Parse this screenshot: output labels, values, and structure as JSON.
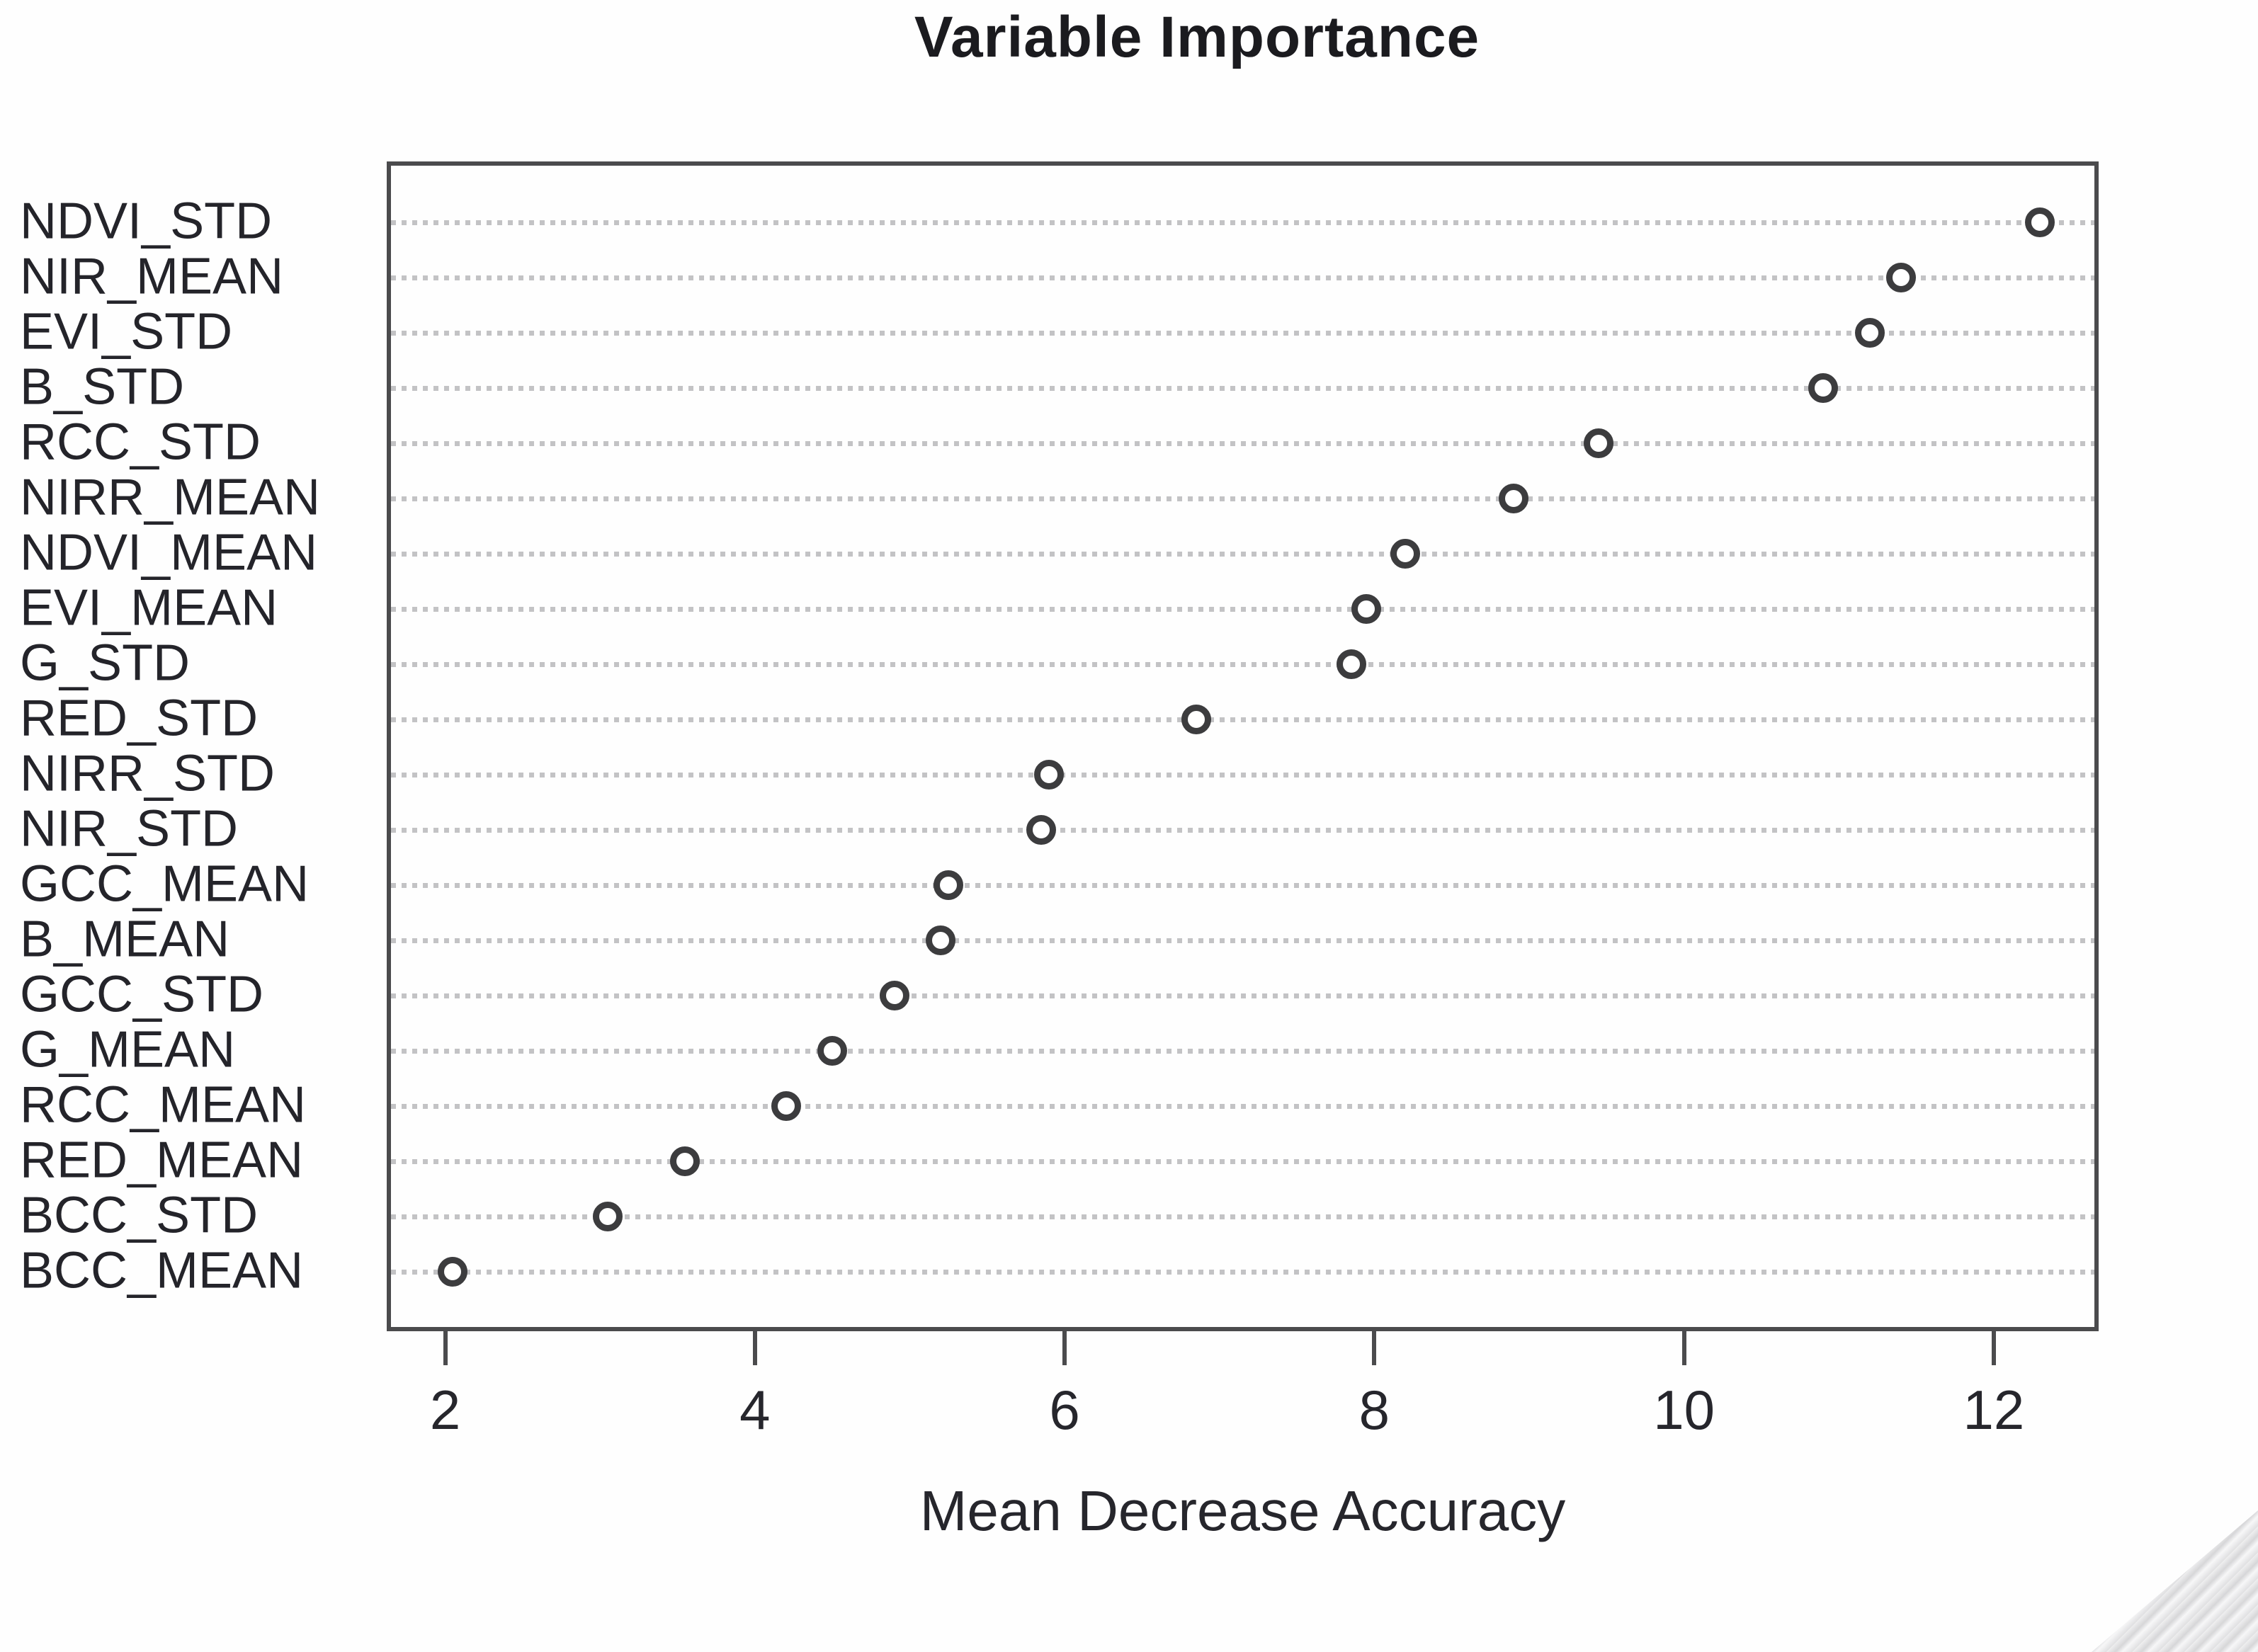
{
  "chart_data": {
    "type": "scatter",
    "subtype": "dot-plot",
    "title": "Variable Importance",
    "xlabel": "Mean Decrease Accuracy",
    "ylabel": "",
    "categories": [
      "NDVI_STD",
      "NIR_MEAN",
      "EVI_STD",
      "B_STD",
      "RCC_STD",
      "NIRR_MEAN",
      "NDVI_MEAN",
      "EVI_MEAN",
      "G_STD",
      "RED_STD",
      "NIRR_STD",
      "NIR_STD",
      "GCC_MEAN",
      "B_MEAN",
      "GCC_STD",
      "G_MEAN",
      "RCC_MEAN",
      "RED_MEAN",
      "BCC_STD",
      "BCC_MEAN"
    ],
    "values": [
      12.3,
      11.4,
      11.2,
      10.9,
      9.45,
      8.9,
      8.2,
      7.95,
      7.85,
      6.85,
      5.9,
      5.85,
      5.25,
      5.2,
      4.9,
      4.5,
      4.2,
      3.55,
      3.05,
      2.05
    ],
    "x_ticks": [
      2,
      4,
      6,
      8,
      10,
      12
    ],
    "xlim": [
      1.65,
      12.65
    ],
    "grid": "horizontal dotted line per category",
    "legend_position": "none",
    "marker": "open-circle"
  },
  "colors": {
    "background": "#fefefe",
    "axis_frame": "#4b4b4d",
    "grid_line": "#c3c3c5",
    "point_stroke": "#3c3c3e",
    "point_fill": "#ffffff",
    "text": "#24242a",
    "corner_decoration": "#d2d2d4"
  }
}
